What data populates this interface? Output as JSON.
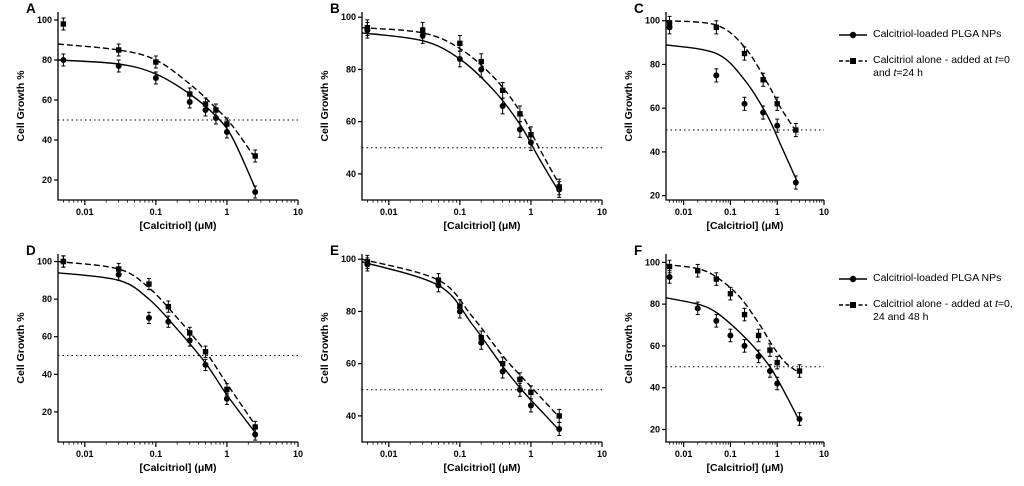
{
  "figure": {
    "background": "#ffffff",
    "ink": "#000000",
    "x_axis_label": "[Calcitriol] (μM)",
    "y_axis_label": "Cell Growth %",
    "reference_line": 50
  },
  "legends": [
    {
      "position": "top-right",
      "items": [
        {
          "marker": "circle",
          "line": "solid",
          "label": "Calcitriol-loaded PLGA NPs"
        },
        {
          "marker": "square",
          "line": "dashed",
          "label": "Calcitriol alone - added at t=0 and t=24 h"
        }
      ]
    },
    {
      "position": "bottom-right",
      "items": [
        {
          "marker": "circle",
          "line": "solid",
          "label": "Calcitriol-loaded PLGA NPs"
        },
        {
          "marker": "square",
          "line": "dashed",
          "label": "Calcitriol alone - added at t=0, 24 and 48 h"
        }
      ]
    }
  ],
  "chart_data": [
    {
      "type": "scatter",
      "label": "A",
      "xlabel": "[Calcitriol] (μM)",
      "ylabel": "Cell Growth %",
      "xlim": [
        0.0042,
        10
      ],
      "ylim": [
        10,
        104
      ],
      "xticks": [
        0.01,
        0.1,
        1,
        10
      ],
      "yticks": [
        20,
        40,
        60,
        80,
        100
      ],
      "reference_y": 50,
      "x": [
        0.005,
        0.03,
        0.1,
        0.3,
        0.5,
        0.7,
        1,
        2.5
      ],
      "series": [
        {
          "name": "Calcitriol-loaded PLGA NPs",
          "marker": "circle",
          "line": "solid",
          "y": [
            80,
            77,
            71,
            59,
            55,
            51,
            44,
            14
          ],
          "err": 3,
          "curve": [
            [
              0.0042,
              80
            ],
            [
              0.03,
              78
            ],
            [
              0.1,
              73
            ],
            [
              0.3,
              63
            ],
            [
              0.7,
              52
            ],
            [
              1.2,
              41
            ],
            [
              2.5,
              16
            ]
          ]
        },
        {
          "name": "Calcitriol alone",
          "marker": "square",
          "line": "dashed",
          "y": [
            98,
            85,
            79,
            63,
            58,
            55,
            48,
            32
          ],
          "err": 3,
          "curve": [
            [
              0.0042,
              88
            ],
            [
              0.03,
              85
            ],
            [
              0.1,
              80
            ],
            [
              0.3,
              68
            ],
            [
              0.7,
              56
            ],
            [
              1.2,
              47
            ],
            [
              2.5,
              31
            ]
          ]
        }
      ]
    },
    {
      "type": "scatter",
      "label": "B",
      "xlabel": "[Calcitriol] (μM)",
      "ylabel": "Cell Growth %",
      "xlim": [
        0.0042,
        10
      ],
      "ylim": [
        30,
        102
      ],
      "xticks": [
        0.01,
        0.1,
        1,
        10
      ],
      "yticks": [
        40,
        60,
        80,
        100
      ],
      "reference_y": 50,
      "x": [
        0.005,
        0.03,
        0.1,
        0.2,
        0.4,
        0.7,
        1,
        2.5
      ],
      "series": [
        {
          "name": "Calcitriol-loaded PLGA NPs",
          "marker": "circle",
          "line": "solid",
          "y": [
            95,
            93,
            84,
            80,
            66,
            57,
            52,
            34
          ],
          "err": 3,
          "curve": [
            [
              0.0042,
              94
            ],
            [
              0.03,
              91
            ],
            [
              0.1,
              84
            ],
            [
              0.3,
              72
            ],
            [
              0.7,
              59
            ],
            [
              1.3,
              46
            ],
            [
              2.5,
              33
            ]
          ]
        },
        {
          "name": "Calcitriol alone",
          "marker": "square",
          "line": "dashed",
          "y": [
            96,
            95,
            90,
            83,
            72,
            63,
            55,
            35
          ],
          "err": 3,
          "curve": [
            [
              0.0042,
              96
            ],
            [
              0.03,
              94
            ],
            [
              0.1,
              88
            ],
            [
              0.3,
              77
            ],
            [
              0.7,
              64
            ],
            [
              1.3,
              50
            ],
            [
              2.5,
              36
            ]
          ]
        }
      ]
    },
    {
      "type": "scatter",
      "label": "C",
      "xlabel": "[Calcitriol] (μM)",
      "ylabel": "Cell Growth %",
      "xlim": [
        0.0042,
        10
      ],
      "ylim": [
        18,
        104
      ],
      "xticks": [
        0.01,
        0.1,
        1,
        10
      ],
      "yticks": [
        20,
        40,
        60,
        80,
        100
      ],
      "reference_y": 50,
      "x": [
        0.005,
        0.05,
        0.2,
        0.5,
        1,
        2.5
      ],
      "series": [
        {
          "name": "Calcitriol-loaded PLGA NPs",
          "marker": "circle",
          "line": "solid",
          "y": [
            97,
            75,
            62,
            58,
            52,
            26
          ],
          "err": 3,
          "curve": [
            [
              0.0042,
              89
            ],
            [
              0.05,
              85
            ],
            [
              0.2,
              73
            ],
            [
              0.6,
              57
            ],
            [
              1.2,
              43
            ],
            [
              2.6,
              27
            ]
          ]
        },
        {
          "name": "Calcitriol alone",
          "marker": "square",
          "line": "dashed",
          "y": [
            99,
            97,
            85,
            73,
            62,
            50
          ],
          "err": 3,
          "curve": [
            [
              0.0042,
              100
            ],
            [
              0.05,
              98
            ],
            [
              0.2,
              88
            ],
            [
              0.6,
              72
            ],
            [
              1.2,
              60
            ],
            [
              2.8,
              48
            ]
          ]
        }
      ]
    },
    {
      "type": "scatter",
      "label": "D",
      "xlabel": "[Calcitriol] (μM)",
      "ylabel": "Cell Growth %",
      "xlim": [
        0.0042,
        10
      ],
      "ylim": [
        4,
        104
      ],
      "xticks": [
        0.01,
        0.1,
        1,
        10
      ],
      "yticks": [
        20,
        40,
        60,
        80,
        100
      ],
      "reference_y": 50,
      "x": [
        0.005,
        0.03,
        0.08,
        0.15,
        0.3,
        0.5,
        1,
        2.5
      ],
      "series": [
        {
          "name": "Calcitriol-loaded PLGA NPs",
          "marker": "circle",
          "line": "solid",
          "y": [
            100,
            93,
            70,
            68,
            58,
            45,
            27,
            8
          ],
          "err": 3,
          "curve": [
            [
              0.0042,
              94
            ],
            [
              0.03,
              90
            ],
            [
              0.08,
              80
            ],
            [
              0.2,
              64
            ],
            [
              0.5,
              46
            ],
            [
              1,
              29
            ],
            [
              2.5,
              9
            ]
          ]
        },
        {
          "name": "Calcitriol alone",
          "marker": "square",
          "line": "dashed",
          "y": [
            100,
            96,
            88,
            76,
            62,
            52,
            32,
            12
          ],
          "err": 3,
          "curve": [
            [
              0.0042,
              100
            ],
            [
              0.03,
              96
            ],
            [
              0.08,
              86
            ],
            [
              0.2,
              70
            ],
            [
              0.5,
              52
            ],
            [
              1,
              35
            ],
            [
              2.5,
              13
            ]
          ]
        }
      ]
    },
    {
      "type": "scatter",
      "label": "E",
      "xlabel": "[Calcitriol] (μM)",
      "ylabel": "Cell Growth %",
      "xlim": [
        0.0042,
        10
      ],
      "ylim": [
        30,
        102
      ],
      "xticks": [
        0.01,
        0.1,
        1,
        10
      ],
      "yticks": [
        40,
        60,
        80,
        100
      ],
      "reference_y": 50,
      "x": [
        0.005,
        0.05,
        0.1,
        0.2,
        0.4,
        0.7,
        1,
        2.5
      ],
      "series": [
        {
          "name": "Calcitriol-loaded PLGA NPs",
          "marker": "circle",
          "line": "solid",
          "y": [
            98,
            90,
            80,
            68,
            57,
            50,
            44,
            35
          ],
          "err": 2.5,
          "curve": [
            [
              0.0042,
              99
            ],
            [
              0.05,
              90
            ],
            [
              0.15,
              75
            ],
            [
              0.4,
              59
            ],
            [
              0.8,
              49
            ],
            [
              1.5,
              41
            ],
            [
              2.6,
              34
            ]
          ]
        },
        {
          "name": "Calcitriol alone",
          "marker": "square",
          "line": "dashed",
          "y": [
            99,
            92,
            82,
            70,
            60,
            54,
            49,
            40
          ],
          "err": 2.5,
          "curve": [
            [
              0.0042,
              100
            ],
            [
              0.05,
              92
            ],
            [
              0.15,
              78
            ],
            [
              0.4,
              63
            ],
            [
              0.8,
              54
            ],
            [
              1.5,
              46
            ],
            [
              2.6,
              39
            ]
          ]
        }
      ]
    },
    {
      "type": "scatter",
      "label": "F",
      "xlabel": "[Calcitriol] (μM)",
      "ylabel": "Cell Growth %",
      "xlim": [
        0.0042,
        10
      ],
      "ylim": [
        14,
        104
      ],
      "xticks": [
        0.01,
        0.1,
        1,
        10
      ],
      "yticks": [
        20,
        40,
        60,
        80,
        100
      ],
      "reference_y": 50,
      "x": [
        0.005,
        0.02,
        0.05,
        0.1,
        0.2,
        0.4,
        0.7,
        1,
        3
      ],
      "series": [
        {
          "name": "Calcitriol-loaded PLGA NPs",
          "marker": "circle",
          "line": "solid",
          "y": [
            93,
            78,
            72,
            65,
            60,
            55,
            48,
            42,
            25
          ],
          "err": 3,
          "curve": [
            [
              0.0042,
              83
            ],
            [
              0.02,
              80
            ],
            [
              0.05,
              76
            ],
            [
              0.15,
              67
            ],
            [
              0.4,
              57
            ],
            [
              0.8,
              48
            ],
            [
              1.5,
              37
            ],
            [
              3,
              24
            ]
          ]
        },
        {
          "name": "Calcitriol alone",
          "marker": "square",
          "line": "dashed",
          "y": [
            98,
            96,
            92,
            85,
            75,
            65,
            58,
            52,
            48
          ],
          "err": 3,
          "curve": [
            [
              0.0042,
              99
            ],
            [
              0.02,
              97
            ],
            [
              0.05,
              93
            ],
            [
              0.15,
              84
            ],
            [
              0.4,
              71
            ],
            [
              0.8,
              60
            ],
            [
              1.5,
              52
            ],
            [
              3,
              47
            ]
          ]
        }
      ]
    }
  ]
}
